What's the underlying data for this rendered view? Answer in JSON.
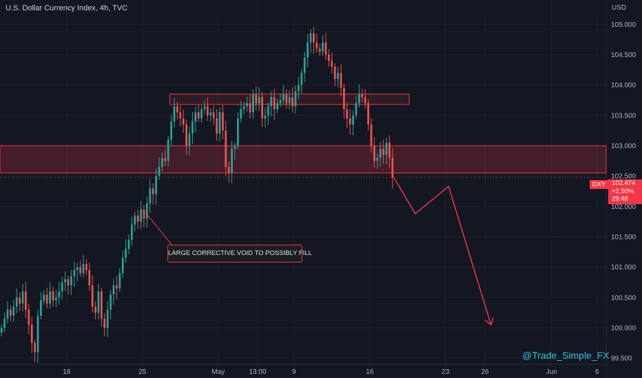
{
  "header": {
    "title": "U.S. Dollar Currency Index, 4h, TVC",
    "currency": "USD"
  },
  "badge": {
    "symbol": "DXY",
    "price": "102.474",
    "change": "+2.50%",
    "countdown": "29:48"
  },
  "annotation": {
    "text": "LARGE CORRECTIVE VOID TO POSSIBLY FILL"
  },
  "watermark": "@Trade_Simple_FX",
  "colors": {
    "background": "#131722",
    "up": "#26a69a",
    "down": "#ef5350",
    "zone": "#f23645",
    "axis_text": "#b2b5be",
    "watermark": "#26c6da"
  },
  "chart_data": {
    "type": "candlestick",
    "timeframe": "4h",
    "y_ticks": [
      99.5,
      100.0,
      100.5,
      101.0,
      101.5,
      102.0,
      102.5,
      103.0,
      103.5,
      104.0,
      104.5,
      105.0
    ],
    "y_tick_labels": [
      "99.500",
      "100.000",
      "100.500",
      "101.000",
      "101.500",
      "102.000",
      "102.500",
      "103.000",
      "103.500",
      "104.000",
      "104.500",
      "105.000"
    ],
    "ylim": [
      99.4,
      105.4
    ],
    "x_tick_labels": [
      "18",
      "25",
      "May",
      "13:00",
      "9",
      "16",
      "23",
      "26",
      "Jun",
      "6"
    ],
    "x_tick_bars": [
      22,
      47,
      72,
      85,
      97,
      122,
      147,
      160,
      182,
      197
    ],
    "xlim_bars": [
      0,
      200
    ],
    "last_price": 102.474,
    "closes": [
      100.0,
      100.15,
      100.3,
      100.2,
      100.35,
      100.5,
      100.4,
      100.6,
      100.3,
      100.05,
      99.75,
      99.6,
      100.2,
      100.45,
      100.55,
      100.4,
      100.6,
      100.45,
      100.5,
      100.6,
      100.75,
      100.8,
      100.7,
      100.85,
      100.95,
      101.0,
      100.9,
      101.05,
      100.95,
      100.7,
      100.35,
      100.25,
      100.6,
      100.15,
      100.0,
      100.3,
      100.55,
      100.7,
      100.65,
      100.9,
      101.15,
      101.3,
      101.45,
      101.7,
      101.85,
      101.75,
      101.95,
      101.8,
      102.05,
      102.3,
      102.2,
      102.5,
      102.65,
      102.8,
      102.75,
      103.1,
      103.4,
      103.65,
      103.55,
      103.45,
      103.35,
      103.0,
      103.2,
      103.4,
      103.55,
      103.45,
      103.6,
      103.65,
      103.5,
      103.55,
      103.45,
      103.2,
      103.55,
      103.25,
      102.65,
      102.55,
      102.95,
      103.0,
      103.45,
      103.6,
      103.65,
      103.7,
      103.55,
      103.85,
      103.7,
      103.8,
      103.45,
      103.5,
      103.65,
      103.8,
      103.6,
      103.7,
      103.75,
      103.85,
      103.7,
      103.8,
      103.65,
      103.9,
      104.0,
      104.2,
      104.45,
      104.7,
      104.85,
      104.7,
      104.6,
      104.55,
      104.7,
      104.5,
      104.4,
      104.3,
      104.1,
      104.2,
      103.95,
      103.6,
      103.45,
      103.35,
      103.5,
      103.7,
      103.85,
      103.8,
      103.7,
      103.35,
      103.0,
      102.75,
      102.8,
      102.95,
      102.85,
      103.05,
      102.8,
      102.474
    ],
    "projection": [
      {
        "bar": 130,
        "price": 102.474
      },
      {
        "bar": 137,
        "price": 101.88
      },
      {
        "bar": 148,
        "price": 102.33
      },
      {
        "bar": 162,
        "price": 100.05
      }
    ],
    "zones": [
      {
        "from_bar": 0,
        "to_bar": 200,
        "low": 102.55,
        "high": 103.0
      },
      {
        "from_bar": 56,
        "to_bar": 135,
        "low": 103.68,
        "high": 103.85
      }
    ],
    "callout_anchor": {
      "bar": 48,
      "price": 101.9
    }
  }
}
